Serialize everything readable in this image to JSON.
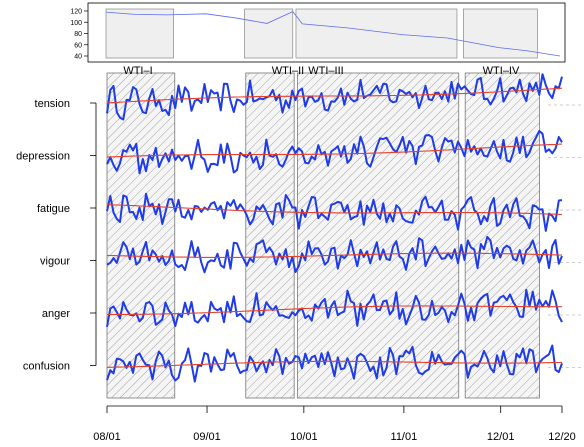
{
  "chart_data": [
    {
      "type": "line",
      "panel": "overview",
      "title": "",
      "xlabel": "",
      "ylabel": "",
      "ylim": [
        40,
        120
      ],
      "y_ticks": [
        "40",
        "60",
        "80",
        "100",
        "120"
      ],
      "x_range": [
        "2011-08-01",
        "2011-12-20"
      ],
      "series": [
        {
          "x": [
            "2011-08-01",
            "2011-08-10",
            "2011-08-20",
            "2011-09-01",
            "2011-09-10",
            "2011-09-20",
            "2011-09-28",
            "2011-10-01",
            "2011-10-15",
            "2011-11-01",
            "2011-11-15",
            "2011-12-01",
            "2011-12-10",
            "2011-12-20"
          ],
          "values": [
            118,
            114,
            113,
            115,
            108,
            98,
            119,
            97,
            90,
            78,
            72,
            55,
            49,
            40
          ]
        }
      ],
      "shaded_periods": [
        {
          "start": "2011-08-01",
          "end": "2011-08-22"
        },
        {
          "start": "2011-09-13",
          "end": "2011-09-28"
        },
        {
          "start": "2011-09-29",
          "end": "2011-11-18"
        },
        {
          "start": "2011-11-20",
          "end": "2011-12-13"
        }
      ]
    },
    {
      "type": "line",
      "panel": "mood-profiles",
      "title": "",
      "xlabel": "",
      "ylabel": "",
      "x_ticks": [
        "08/01",
        "09/01",
        "10/01",
        "11/01",
        "12/01",
        "12/20"
      ],
      "x_range": [
        "2011-08-01",
        "2011-12-20"
      ],
      "period_labels": [
        "WTI–I",
        "WTI–II",
        "WTI–III",
        "WTI–IV"
      ],
      "categories": [
        "tension",
        "depression",
        "fatigue",
        "vigour",
        "anger",
        "confusion"
      ],
      "series_style": {
        "raw": "#1f3ce6",
        "smooth": "#e8402a"
      },
      "grid": "dashed reference lines at right edge",
      "trend_start": [
        0,
        -0.2,
        0.1,
        0.3,
        0,
        0
      ],
      "trend_end": [
        0.9,
        0.6,
        -0.5,
        0.35,
        0.5,
        0.3
      ]
    }
  ]
}
